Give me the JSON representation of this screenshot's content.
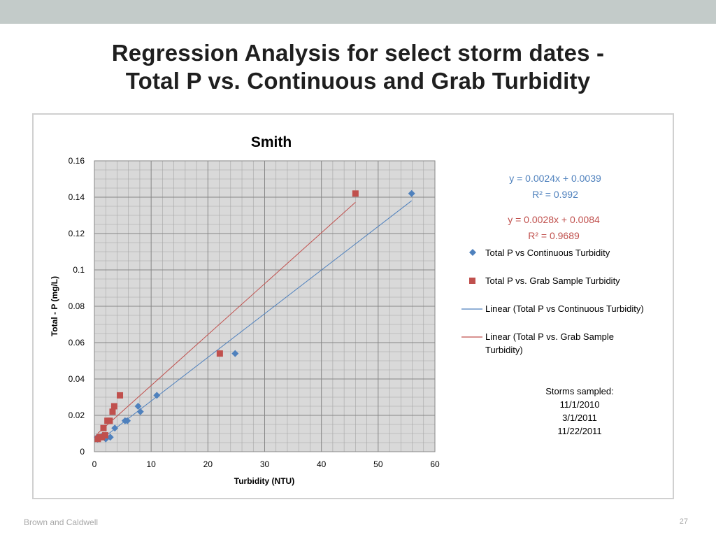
{
  "slide": {
    "title_line1": "Regression Analysis for select storm dates -",
    "title_line2": "Total P vs. Continuous and Grab Turbidity",
    "footer_left": "Brown and Caldwell",
    "page_number": "27"
  },
  "chart_data": {
    "type": "scatter",
    "title": "Smith",
    "xlabel": "Turbidity (NTU)",
    "ylabel": "Total - P (mg/L)",
    "xlim": [
      0,
      60
    ],
    "ylim": [
      0,
      0.16
    ],
    "x_ticks": [
      "0",
      "10",
      "20",
      "30",
      "40",
      "50",
      "60"
    ],
    "y_ticks": [
      "0",
      "0.02",
      "0.04",
      "0.06",
      "0.08",
      "0.1",
      "0.12",
      "0.14",
      "0.16"
    ],
    "grid": true,
    "series": [
      {
        "name": "Total P vs Continuous Turbidity",
        "marker": "diamond",
        "color": "#4f81bd",
        "points": [
          [
            0.5,
            0.008
          ],
          [
            1.0,
            0.008
          ],
          [
            1.5,
            0.009
          ],
          [
            2.0,
            0.007
          ],
          [
            2.8,
            0.008
          ],
          [
            3.6,
            0.013
          ],
          [
            5.4,
            0.017
          ],
          [
            5.8,
            0.017
          ],
          [
            7.7,
            0.025
          ],
          [
            8.1,
            0.022
          ],
          [
            11.0,
            0.031
          ],
          [
            24.8,
            0.054
          ],
          [
            55.9,
            0.142
          ]
        ]
      },
      {
        "name": "Total P vs. Grab Sample Turbidity",
        "marker": "square",
        "color": "#c0504d",
        "points": [
          [
            0.6,
            0.007
          ],
          [
            0.9,
            0.008
          ],
          [
            1.3,
            0.008
          ],
          [
            1.6,
            0.013
          ],
          [
            1.9,
            0.009
          ],
          [
            2.3,
            0.017
          ],
          [
            2.7,
            0.017
          ],
          [
            3.2,
            0.022
          ],
          [
            3.5,
            0.025
          ],
          [
            4.5,
            0.031
          ],
          [
            22.1,
            0.054
          ],
          [
            46.0,
            0.142
          ]
        ]
      }
    ],
    "trendlines": [
      {
        "name": "Linear (Total P vs Continuous Turbidity)",
        "color": "#4f81bd",
        "slope": 0.0024,
        "intercept": 0.0039,
        "x_range": [
          0.5,
          55.9
        ],
        "equation": "y = 0.0024x + 0.0039",
        "r2": "R² = 0.992"
      },
      {
        "name": "Linear (Total P vs. Grab Sample Turbidity)",
        "color": "#c0504d",
        "slope": 0.0028,
        "intercept": 0.0084,
        "x_range": [
          0.6,
          46.0
        ],
        "equation": "y = 0.0028x + 0.0084",
        "r2": "R² = 0.9689"
      }
    ],
    "legend": [
      "Total P vs Continuous Turbidity",
      "Total P vs. Grab Sample Turbidity",
      "Linear (Total P vs Continuous Turbidity)",
      "Linear (Total P vs. Grab Sample",
      "Turbidity)"
    ],
    "legend_position": "right",
    "annotation": [
      "Storms sampled:",
      "11/1/2010",
      "3/1/2011",
      "11/22/2011"
    ]
  }
}
